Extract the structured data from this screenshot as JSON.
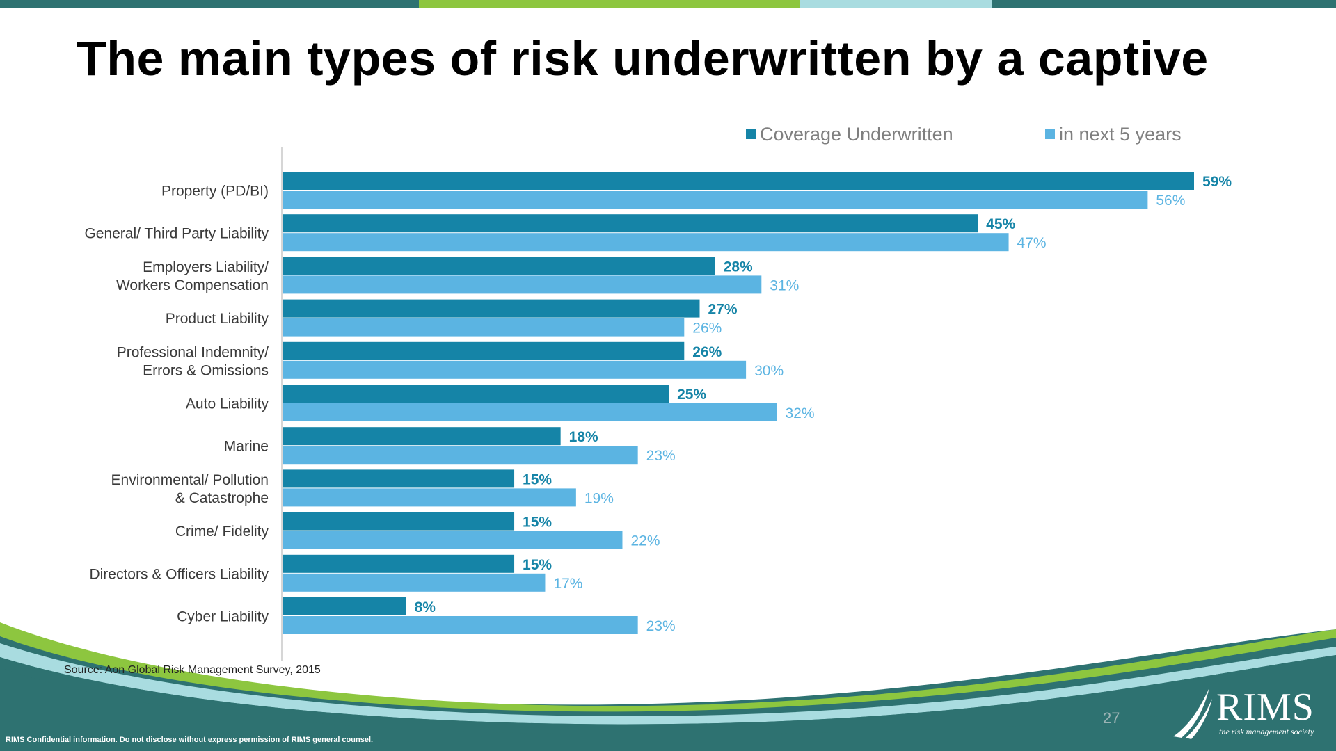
{
  "title": "The main types of risk underwritten by a captive",
  "colors": {
    "series1": "#1584A7",
    "series2": "#5BB4E2",
    "teal_dark": "#2E7271",
    "green": "#8DC63F",
    "light_teal": "#A9DCE0"
  },
  "source": "Source: Aon Global Risk Management Survey, 2015",
  "confidential": "RIMS Confidential information. Do not disclose without express permission of RIMS general counsel.",
  "page_number": "27",
  "logo": {
    "text": "RIMS",
    "tagline": "the risk management society",
    "icon": "rims-swoosh-icon"
  },
  "chart_data": {
    "type": "bar",
    "orientation": "horizontal",
    "categories": [
      [
        "Property (PD/BI)"
      ],
      [
        "General/ Third Party Liability"
      ],
      [
        "Employers Liability/",
        "Workers Compensation"
      ],
      [
        "Product Liability"
      ],
      [
        "Professional Indemnity/",
        "Errors & Omissions"
      ],
      [
        "Auto Liability"
      ],
      [
        "Marine"
      ],
      [
        "Environmental/ Pollution",
        "& Catastrophe"
      ],
      [
        "Crime/ Fidelity"
      ],
      [
        "Directors & Officers Liability"
      ],
      [
        "Cyber Liability"
      ]
    ],
    "series": [
      {
        "name": "Coverage Underwritten",
        "values": [
          59,
          45,
          28,
          27,
          26,
          25,
          18,
          15,
          15,
          15,
          8
        ]
      },
      {
        "name": "in next 5 years",
        "values": [
          56,
          47,
          31,
          26,
          30,
          32,
          23,
          19,
          22,
          17,
          23
        ]
      }
    ],
    "value_suffix": "%",
    "legend_position": "top-right"
  }
}
